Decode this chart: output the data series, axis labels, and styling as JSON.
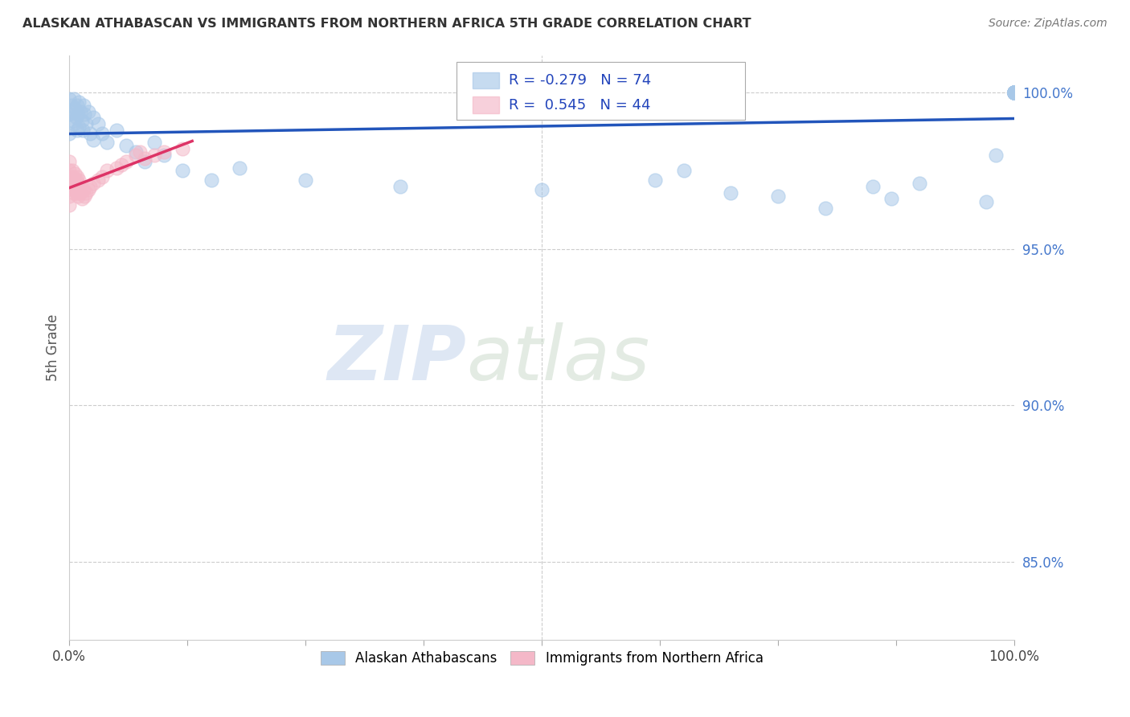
{
  "title": "ALASKAN ATHABASCAN VS IMMIGRANTS FROM NORTHERN AFRICA 5TH GRADE CORRELATION CHART",
  "source": "Source: ZipAtlas.com",
  "ylabel": "5th Grade",
  "ylabel_right_ticks": [
    100.0,
    95.0,
    90.0,
    85.0
  ],
  "xlim": [
    0.0,
    1.0
  ],
  "ylim": [
    0.825,
    1.012
  ],
  "legend_blue_label": "Alaskan Athabascans",
  "legend_pink_label": "Immigrants from Northern Africa",
  "R_blue": -0.279,
  "N_blue": 74,
  "R_pink": 0.545,
  "N_pink": 44,
  "blue_color": "#a8c8e8",
  "pink_color": "#f4b8c8",
  "blue_line_color": "#2255bb",
  "pink_line_color": "#dd3366",
  "watermark_zip": "ZIP",
  "watermark_atlas": "atlas",
  "blue_scatter_x": [
    0.0,
    0.0,
    0.0,
    0.002,
    0.003,
    0.004,
    0.005,
    0.005,
    0.006,
    0.007,
    0.008,
    0.008,
    0.009,
    0.01,
    0.01,
    0.012,
    0.013,
    0.014,
    0.015,
    0.016,
    0.018,
    0.02,
    0.022,
    0.025,
    0.025,
    0.03,
    0.035,
    0.04,
    0.05,
    0.06,
    0.07,
    0.08,
    0.09,
    0.1,
    0.12,
    0.15,
    0.18,
    0.25,
    0.35,
    0.5,
    0.62,
    0.65,
    0.7,
    0.75,
    0.8,
    0.85,
    0.87,
    0.9,
    1.0,
    1.0,
    1.0,
    1.0,
    1.0,
    1.0,
    1.0,
    1.0,
    1.0,
    1.0,
    1.0,
    1.0,
    1.0,
    1.0,
    1.0,
    1.0,
    1.0,
    1.0,
    1.0,
    1.0,
    1.0,
    1.0,
    1.0,
    1.0,
    0.98,
    0.97
  ],
  "blue_scatter_y": [
    0.998,
    0.993,
    0.987,
    0.996,
    0.994,
    0.991,
    0.998,
    0.99,
    0.995,
    0.992,
    0.996,
    0.988,
    0.993,
    0.997,
    0.989,
    0.994,
    0.991,
    0.988,
    0.996,
    0.993,
    0.99,
    0.994,
    0.987,
    0.992,
    0.985,
    0.99,
    0.987,
    0.984,
    0.988,
    0.983,
    0.981,
    0.978,
    0.984,
    0.98,
    0.975,
    0.972,
    0.976,
    0.972,
    0.97,
    0.969,
    0.972,
    0.975,
    0.968,
    0.967,
    0.963,
    0.97,
    0.966,
    0.971,
    1.0,
    1.0,
    1.0,
    1.0,
    1.0,
    1.0,
    1.0,
    1.0,
    1.0,
    1.0,
    1.0,
    1.0,
    1.0,
    1.0,
    1.0,
    1.0,
    1.0,
    1.0,
    1.0,
    1.0,
    1.0,
    1.0,
    1.0,
    1.0,
    0.98,
    0.965
  ],
  "pink_scatter_x": [
    0.0,
    0.0,
    0.0,
    0.0,
    0.0,
    0.0,
    0.002,
    0.003,
    0.003,
    0.004,
    0.004,
    0.005,
    0.005,
    0.006,
    0.006,
    0.007,
    0.007,
    0.008,
    0.008,
    0.009,
    0.009,
    0.01,
    0.01,
    0.011,
    0.012,
    0.013,
    0.015,
    0.016,
    0.018,
    0.02,
    0.022,
    0.025,
    0.03,
    0.035,
    0.04,
    0.05,
    0.055,
    0.06,
    0.07,
    0.075,
    0.08,
    0.09,
    0.1,
    0.12
  ],
  "pink_scatter_y": [
    0.978,
    0.975,
    0.972,
    0.97,
    0.967,
    0.964,
    0.973,
    0.975,
    0.971,
    0.973,
    0.969,
    0.972,
    0.968,
    0.974,
    0.97,
    0.972,
    0.968,
    0.973,
    0.969,
    0.971,
    0.967,
    0.972,
    0.968,
    0.97,
    0.968,
    0.966,
    0.969,
    0.967,
    0.968,
    0.969,
    0.97,
    0.971,
    0.972,
    0.973,
    0.975,
    0.976,
    0.977,
    0.978,
    0.98,
    0.981,
    0.979,
    0.98,
    0.981,
    0.982
  ]
}
